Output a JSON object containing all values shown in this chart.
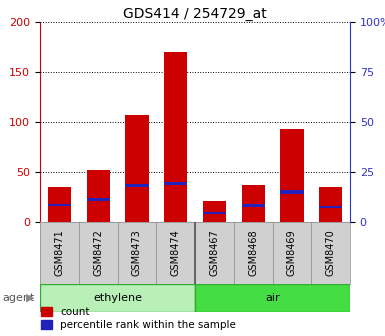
{
  "title": "GDS414 / 254729_at",
  "samples": [
    "GSM8471",
    "GSM8472",
    "GSM8473",
    "GSM8474",
    "GSM8467",
    "GSM8468",
    "GSM8469",
    "GSM8470"
  ],
  "count_values": [
    35,
    52,
    107,
    170,
    21,
    37,
    93,
    35
  ],
  "percentile_bottom": [
    16,
    21,
    35,
    37,
    8,
    15,
    28,
    14
  ],
  "percentile_top": [
    18,
    24,
    38,
    40,
    10,
    18,
    32,
    16
  ],
  "groups": [
    {
      "label": "ethylene",
      "indices": [
        0,
        1,
        2,
        3
      ],
      "color": "#b8f0b8"
    },
    {
      "label": "air",
      "indices": [
        4,
        5,
        6,
        7
      ],
      "color": "#44dd44"
    }
  ],
  "ylim_left": [
    0,
    200
  ],
  "ylim_right": [
    0,
    100
  ],
  "yticks_left": [
    0,
    50,
    100,
    150,
    200
  ],
  "yticks_right": [
    0,
    25,
    50,
    75,
    100
  ],
  "yticklabels_left": [
    "0",
    "50",
    "100",
    "150",
    "200"
  ],
  "yticklabels_right": [
    "0",
    "25",
    "50",
    "75",
    "100%"
  ],
  "left_axis_color": "#cc0000",
  "right_axis_color": "#3333cc",
  "bar_color_red": "#cc0000",
  "bar_color_blue": "#2222bb",
  "grid_color": "#000000",
  "bg_color": "#ffffff",
  "agent_label": "agent",
  "legend_count": "count",
  "legend_percentile": "percentile rank within the sample",
  "label_bg_color": "#d0d0d0",
  "divider_color": "#999999"
}
